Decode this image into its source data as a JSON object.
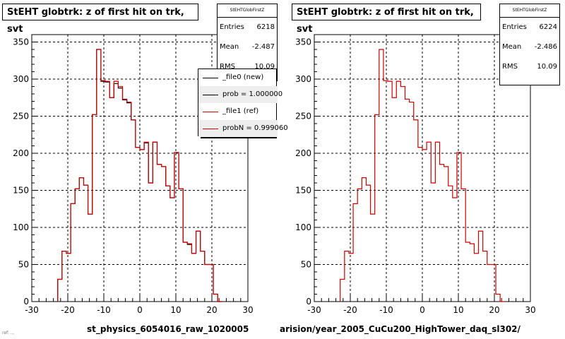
{
  "colors": {
    "ref": "#cc0000",
    "new": "#000000",
    "grid": "#000000"
  },
  "panels": [
    {
      "title": "StEHT globtrk: z of first hit on trk, svt",
      "stats": {
        "name": "StEHTGlobFirstZ",
        "rows": [
          {
            "label": "Entries",
            "value": "6218"
          },
          {
            "label": "Mean",
            "value": "-2.487"
          },
          {
            "label": "RMS",
            "value": "10.09"
          }
        ]
      },
      "legend": [
        {
          "label": "_file0 (new)",
          "color": "#000000"
        },
        {
          "label": "prob = 1.000000",
          "color": "#000000"
        },
        {
          "label": "_file1 (ref)",
          "color": "#cc0000"
        },
        {
          "label": "probN = 0.999060",
          "color": "#cc0000"
        }
      ],
      "xcaption": "st_physics_6054016_raw_1020005"
    },
    {
      "title": "StEHT globtrk: z of first hit on trk, svt",
      "stats": {
        "name": "StEHTGlobFirstZ",
        "rows": [
          {
            "label": "Entries",
            "value": "6224"
          },
          {
            "label": "Mean",
            "value": "-2.486"
          },
          {
            "label": "RMS",
            "value": "10.09"
          }
        ]
      },
      "xcaption": "arision/year_2005_CuCu200_HighTower_daq_sl302/"
    }
  ],
  "footer": "ref: ...",
  "chart_data": [
    {
      "type": "histogram",
      "title": "StEHT globtrk: z of first hit on trk, svt",
      "xlabel": "st_physics_6054016_raw_1020005",
      "xlim": [
        -30,
        30
      ],
      "ylim": [
        0,
        360
      ],
      "xticks": [
        -30,
        -20,
        -10,
        0,
        10,
        20,
        30
      ],
      "yticks": [
        0,
        50,
        100,
        150,
        200,
        250,
        300,
        350
      ],
      "grid": true,
      "bin_width": 1.2,
      "bin_start": -22.8,
      "series": [
        {
          "name": "_file0 (new)",
          "color": "#000000",
          "values": [
            30,
            68,
            65,
            132,
            152,
            167,
            157,
            118,
            252,
            340,
            297,
            296,
            275,
            294,
            288,
            272,
            268,
            245,
            208,
            205,
            214,
            160,
            215,
            185,
            182,
            156,
            140,
            201,
            152,
            80,
            77,
            65,
            95,
            68,
            50,
            50,
            10,
            0
          ]
        },
        {
          "name": "_file1 (ref)",
          "color": "#cc0000",
          "values": [
            30,
            68,
            65,
            132,
            152,
            167,
            157,
            118,
            252,
            340,
            298,
            297,
            275,
            297,
            290,
            273,
            269,
            245,
            208,
            205,
            215,
            160,
            215,
            185,
            182,
            156,
            140,
            201,
            152,
            80,
            78,
            65,
            95,
            68,
            50,
            50,
            10,
            0
          ]
        }
      ]
    },
    {
      "type": "histogram",
      "title": "StEHT globtrk: z of first hit on trk, svt",
      "xlabel": "arision/year_2005_CuCu200_HighTower_daq_sl302/",
      "xlim": [
        -30,
        30
      ],
      "ylim": [
        0,
        360
      ],
      "xticks": [
        -30,
        -20,
        -10,
        0,
        10,
        20,
        30
      ],
      "yticks": [
        0,
        50,
        100,
        150,
        200,
        250,
        300,
        350
      ],
      "grid": true,
      "bin_width": 1.2,
      "bin_start": -22.8,
      "series": [
        {
          "color": "#cc0000",
          "values": [
            30,
            68,
            65,
            132,
            152,
            167,
            157,
            118,
            252,
            340,
            298,
            297,
            275,
            297,
            290,
            273,
            269,
            245,
            208,
            205,
            215,
            160,
            215,
            185,
            182,
            156,
            140,
            201,
            152,
            80,
            78,
            65,
            95,
            68,
            50,
            50,
            10,
            0
          ]
        }
      ]
    }
  ]
}
